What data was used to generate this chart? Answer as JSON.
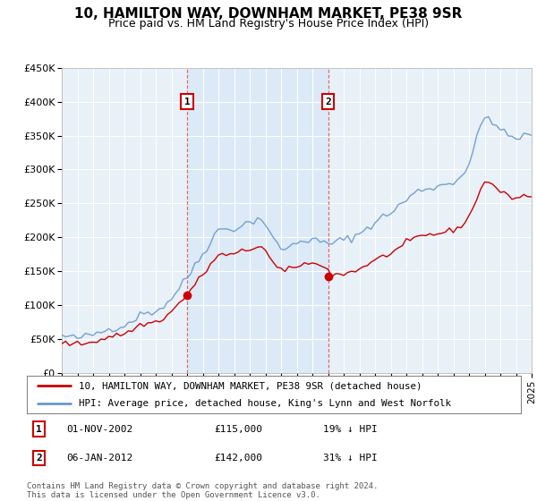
{
  "title": "10, HAMILTON WAY, DOWNHAM MARKET, PE38 9SR",
  "subtitle": "Price paid vs. HM Land Registry's House Price Index (HPI)",
  "legend_line1": "10, HAMILTON WAY, DOWNHAM MARKET, PE38 9SR (detached house)",
  "legend_line2": "HPI: Average price, detached house, King's Lynn and West Norfolk",
  "footnote1": "Contains HM Land Registry data © Crown copyright and database right 2024.",
  "footnote2": "This data is licensed under the Open Government Licence v3.0.",
  "transaction1_label": "1",
  "transaction1_date": "01-NOV-2002",
  "transaction1_price": "£115,000",
  "transaction1_hpi": "19% ↓ HPI",
  "transaction2_label": "2",
  "transaction2_date": "06-JAN-2012",
  "transaction2_price": "£142,000",
  "transaction2_hpi": "31% ↓ HPI",
  "hpi_color": "#6699cc",
  "price_color": "#cc0000",
  "marker1_x": 2003.0,
  "marker2_x": 2012.0,
  "marker1_price": 115000,
  "marker2_price": 142000,
  "ylim": [
    0,
    450000
  ],
  "xlim": [
    1995,
    2025
  ],
  "plot_bg": "#e8f0f8"
}
